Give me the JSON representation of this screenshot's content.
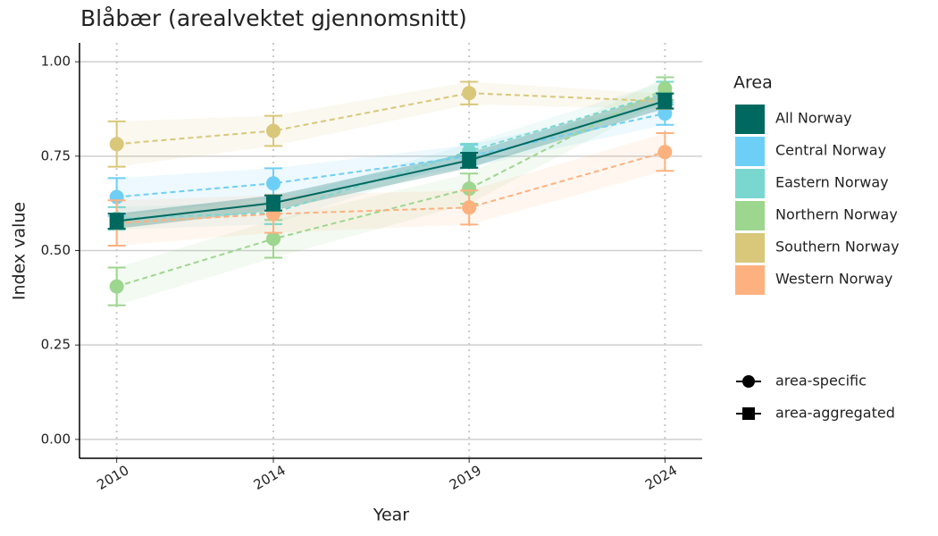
{
  "chart_data": {
    "type": "line",
    "title": "Blåbær (arealvektet gjennomsnitt)",
    "x_label": "Year",
    "y_label": "Index value",
    "x": [
      2010,
      2014,
      2019,
      2024
    ],
    "xlim": [
      2009.05,
      2024.95
    ],
    "xticks": [
      2010,
      2014,
      2019,
      2024
    ],
    "ylim": [
      -0.05,
      1.05
    ],
    "yticks": [
      {
        "value": 0,
        "label": "0.00"
      },
      {
        "value": 0.25,
        "label": "0.25"
      },
      {
        "value": 0.5,
        "label": "0.50"
      },
      {
        "value": 0.75,
        "label": "0.75"
      },
      {
        "value": 1,
        "label": "1.00"
      }
    ],
    "grid": true,
    "legend_title": "Area",
    "legend_position": "right",
    "series": [
      {
        "name": "All Norway",
        "color": "#00695f",
        "marker": "square",
        "dashed": false,
        "values": [
          0.578,
          0.626,
          0.739,
          0.896
        ],
        "errors": [
          0.02,
          0.02,
          0.02,
          0.02
        ]
      },
      {
        "name": "Central Norway",
        "color": "#6ecff6",
        "marker": "circle",
        "dashed": true,
        "values": [
          0.642,
          0.678,
          0.75,
          0.863
        ],
        "errors": [
          0.05,
          0.04,
          0.03,
          0.03
        ]
      },
      {
        "name": "Eastern Norway",
        "color": "#7ad7cf",
        "marker": "circle",
        "dashed": true,
        "values": [
          0.585,
          0.6,
          0.763,
          0.917
        ],
        "errors": [
          0.03,
          0.03,
          0.02,
          0.03
        ]
      },
      {
        "name": "Northern Norway",
        "color": "#9dd68f",
        "marker": "circle",
        "dashed": true,
        "values": [
          0.405,
          0.531,
          0.664,
          0.929
        ],
        "errors": [
          0.05,
          0.05,
          0.04,
          0.03
        ]
      },
      {
        "name": "Southern Norway",
        "color": "#d9c77a",
        "marker": "circle",
        "dashed": true,
        "values": [
          0.782,
          0.817,
          0.917,
          0.895
        ],
        "errors": [
          0.06,
          0.04,
          0.03,
          0.02
        ]
      },
      {
        "name": "Western Norway",
        "color": "#fdb17f",
        "marker": "circle",
        "dashed": true,
        "values": [
          0.573,
          0.597,
          0.614,
          0.761
        ],
        "errors": [
          0.06,
          0.05,
          0.045,
          0.05
        ]
      }
    ],
    "shape_legend": [
      {
        "label": "area-specific",
        "marker": "circle"
      },
      {
        "label": "area-aggregated",
        "marker": "square"
      }
    ]
  }
}
